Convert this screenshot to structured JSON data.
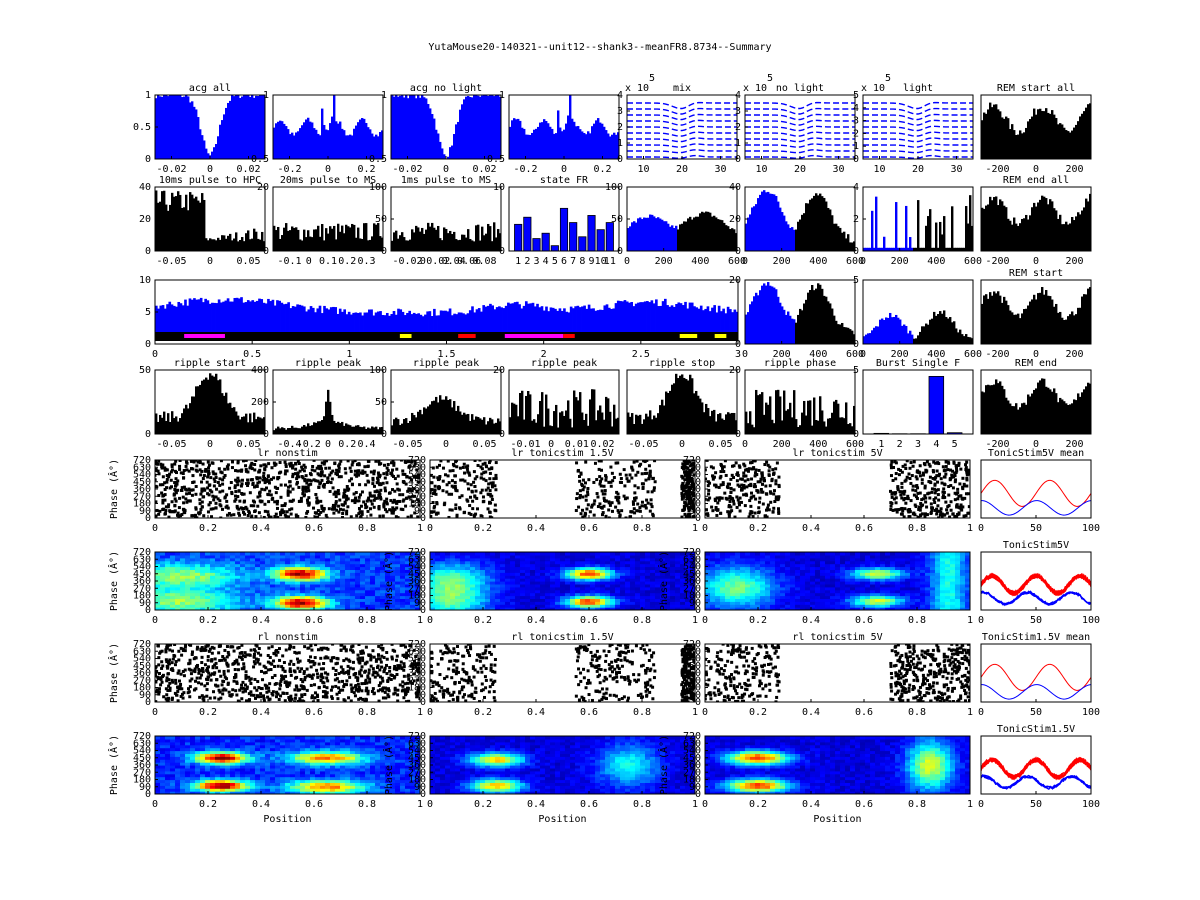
{
  "figure_title": "YutaMouse20-140321--unit12--shank3--meanFR8.8734--Summary",
  "colors": {
    "blue": "#0000ff",
    "black": "#000000",
    "red": "#ff0000",
    "magenta": "#ff00ff",
    "yellow": "#ffff00"
  },
  "chart_data": [
    {
      "id": "acg_all",
      "type": "area",
      "title": "acg all",
      "xticks": [
        "-0.02",
        "0",
        "0.02"
      ],
      "yticks": [
        "0",
        "0.5",
        "1"
      ],
      "ylim": [
        0,
        1
      ],
      "color": "blue",
      "profile": "acg_wide"
    },
    {
      "id": "acg_all_zoom",
      "type": "area",
      "title": "",
      "xticks": [
        "-0.2",
        "0",
        "0.2"
      ],
      "yticks": [
        "0.5",
        "1"
      ],
      "ylim": [
        0,
        1
      ],
      "color": "blue",
      "profile": "acg_narrow"
    },
    {
      "id": "acg_no_light",
      "type": "area",
      "title": "acg no light",
      "xticks": [
        "-0.02",
        "0",
        "0.02"
      ],
      "yticks": [
        "0.5",
        "1"
      ],
      "ylim": [
        0,
        1
      ],
      "color": "blue",
      "profile": "acg_wide"
    },
    {
      "id": "acg_no_light_zoom",
      "type": "area",
      "title": "",
      "xticks": [
        "-0.2",
        "0",
        "0.2"
      ],
      "yticks": [
        "0.5",
        "1"
      ],
      "ylim": [
        0,
        1
      ],
      "color": "blue",
      "profile": "acg_narrow"
    },
    {
      "id": "wave_mix",
      "type": "line",
      "title": "mix",
      "exponent_label": "x 10",
      "exponent": "5",
      "xticks": [
        "10",
        "20",
        "30"
      ],
      "yticks": [
        "0",
        "1",
        "2",
        "3",
        "4"
      ],
      "profile": "waves"
    },
    {
      "id": "wave_no_light",
      "type": "line",
      "title": "no light",
      "exponent_label": "x 10",
      "exponent": "5",
      "xticks": [
        "10",
        "20",
        "30"
      ],
      "yticks": [
        "0",
        "1",
        "2",
        "3",
        "4"
      ],
      "profile": "waves"
    },
    {
      "id": "wave_light",
      "type": "line",
      "title": "light",
      "exponent_label": "x 10",
      "exponent": "5",
      "xticks": [
        "10",
        "20",
        "30"
      ],
      "yticks": [
        "0",
        "1",
        "2",
        "3",
        "4",
        "5"
      ],
      "profile": "waves"
    },
    {
      "id": "rem_start_all",
      "type": "area",
      "title": "REM start all",
      "xticks": [
        "-200",
        "0",
        "200"
      ],
      "yticks": [],
      "color": "black",
      "profile": "rem"
    },
    {
      "id": "pulse10_hpc",
      "type": "bar",
      "title": "10ms pulse to HPC",
      "xticks": [
        "-0.05",
        "0",
        "0.05"
      ],
      "yticks": [
        "0",
        "20",
        "40"
      ],
      "ylim": [
        0,
        40
      ],
      "color": "black",
      "profile": "pulse10"
    },
    {
      "id": "pulse20_ms",
      "type": "bar",
      "title": "20ms pulse to MS",
      "xticks": [
        "-0.1",
        "0",
        "0.1",
        "0.2",
        "0.3"
      ],
      "yticks": [
        "0",
        "20"
      ],
      "ylim": [
        0,
        20
      ],
      "color": "black",
      "profile": "flat"
    },
    {
      "id": "pulse1_ms",
      "type": "bar",
      "title": "1ms pulse to MS",
      "xticks": [
        "-0.02",
        "0",
        "0.02",
        "0.04",
        "0.06",
        "0.08"
      ],
      "yticks": [
        "0",
        "50",
        "100"
      ],
      "ylim": [
        0,
        100
      ],
      "color": "black",
      "profile": "flat"
    },
    {
      "id": "state_fr",
      "type": "bar",
      "title": "state FR",
      "categories": [
        "1",
        "2",
        "3",
        "4",
        "5",
        "6",
        "7",
        "8",
        "9",
        "10",
        "11"
      ],
      "values": [
        7.5,
        9.5,
        3.5,
        5,
        1.5,
        12,
        8,
        4,
        10,
        6,
        8
      ],
      "yticks": [
        "0",
        "10"
      ],
      "ylim": [
        0,
        18
      ],
      "color": "blue"
    },
    {
      "id": "run_fr_1",
      "type": "area",
      "title": "",
      "xticks": [
        "0",
        "200",
        "400",
        "600"
      ],
      "yticks": [
        "0",
        "50",
        "100"
      ],
      "ylim": [
        0,
        100
      ],
      "profile": "run_bimodal"
    },
    {
      "id": "run_fr_2",
      "type": "area",
      "title": "",
      "xticks": [
        "0",
        "200",
        "400",
        "600"
      ],
      "yticks": [
        "0",
        "20",
        "40"
      ],
      "ylim": [
        0,
        40
      ],
      "profile": "run_hump"
    },
    {
      "id": "run_fr_3",
      "type": "bar",
      "title": "",
      "xticks": [
        "0",
        "200",
        "400",
        "600"
      ],
      "yticks": [
        "0",
        "2",
        "4"
      ],
      "ylim": [
        0,
        4
      ],
      "profile": "run_sparse"
    },
    {
      "id": "rem_end_all",
      "type": "area",
      "title": "REM end all",
      "xticks": [
        "-200",
        "0",
        "200"
      ],
      "yticks": [],
      "color": "black",
      "profile": "rem"
    },
    {
      "id": "session_fr",
      "type": "area",
      "title": "",
      "xticks": [
        "0",
        "0.5",
        "1",
        "1.5",
        "2",
        "2.5",
        "3"
      ],
      "yticks": [
        "0",
        "5",
        "10"
      ],
      "ylim": [
        0,
        12
      ],
      "color": "blue",
      "profile": "session"
    },
    {
      "id": "run_fr_4",
      "type": "area",
      "title": "",
      "xticks": [
        "0",
        "200",
        "400",
        "600"
      ],
      "yticks": [
        "0",
        "20"
      ],
      "ylim": [
        0,
        20
      ],
      "profile": "run_hump"
    },
    {
      "id": "run_fr_5",
      "type": "area",
      "title": "",
      "xticks": [
        "0",
        "200",
        "400",
        "600"
      ],
      "yticks": [
        "0",
        "5"
      ],
      "ylim": [
        0,
        5
      ],
      "profile": "run_low"
    },
    {
      "id": "rem_start",
      "type": "area",
      "title": "REM start",
      "xticks": [
        "-200",
        "0",
        "200"
      ],
      "yticks": [],
      "color": "black",
      "profile": "rem"
    },
    {
      "id": "ripple_start",
      "type": "bar",
      "title": "ripple start",
      "xticks": [
        "-0.05",
        "0",
        "0.05"
      ],
      "yticks": [
        "0",
        "50"
      ],
      "ylim": [
        0,
        55
      ],
      "color": "black",
      "profile": "ripple_peak"
    },
    {
      "id": "ripple_peak_1",
      "type": "bar",
      "title": "ripple peak",
      "xticks": [
        "-0.4",
        "-0.2",
        "0",
        "0.2",
        "0.4"
      ],
      "yticks": [
        "0",
        "200",
        "400"
      ],
      "ylim": [
        0,
        400
      ],
      "color": "black",
      "profile": "ripple_sharp"
    },
    {
      "id": "ripple_peak_2",
      "type": "bar",
      "title": "ripple peak",
      "xticks": [
        "-0.05",
        "0",
        "0.05"
      ],
      "yticks": [
        "0",
        "50",
        "100"
      ],
      "ylim": [
        0,
        100
      ],
      "color": "black",
      "profile": "ripple_mid"
    },
    {
      "id": "ripple_peak_3",
      "type": "bar",
      "title": "ripple peak",
      "xticks": [
        "-0.01",
        "0",
        "0.01",
        "0.02"
      ],
      "yticks": [
        "0",
        "20"
      ],
      "ylim": [
        0,
        40
      ],
      "color": "black",
      "profile": "noise"
    },
    {
      "id": "ripple_stop",
      "type": "bar",
      "title": "ripple stop",
      "xticks": [
        "-0.05",
        "0",
        "0.05"
      ],
      "yticks": [],
      "ylim": [
        0,
        60
      ],
      "color": "black",
      "profile": "ripple_peak"
    },
    {
      "id": "ripple_phase",
      "type": "bar",
      "title": "ripple phase",
      "xticks": [
        "0",
        "200",
        "400",
        "600"
      ],
      "yticks": [
        "0",
        "20"
      ],
      "ylim": [
        0,
        50
      ],
      "color": "black",
      "profile": "noise"
    },
    {
      "id": "burst_single",
      "type": "bar",
      "title": "Burst Single F",
      "categories": [
        "1",
        "2",
        "3",
        "4",
        "5"
      ],
      "values": [
        0.05,
        0.02,
        0.02,
        4.5,
        0.1
      ],
      "yticks": [
        "0",
        "5"
      ],
      "ylim": [
        0,
        5
      ],
      "color": "blue"
    },
    {
      "id": "rem_end",
      "type": "area",
      "title": "REM end",
      "xticks": [
        "-200",
        "0",
        "200"
      ],
      "yticks": [],
      "color": "black",
      "profile": "rem"
    },
    {
      "id": "lr_nonstim",
      "type": "scatter",
      "title": "lr nonstim",
      "ylabel": "Phase (Â°)",
      "xticks": [
        "0",
        "0.2",
        "0.4",
        "0.6",
        "0.8",
        "1"
      ],
      "yticks": [
        "0",
        "90",
        "180",
        "270",
        "360",
        "450",
        "540",
        "630",
        "720"
      ],
      "profile": "scatter_dense"
    },
    {
      "id": "lr_tonicstim_1_5v",
      "type": "scatter",
      "title": "lr tonicstim 1.5V",
      "xticks": [
        "0",
        "0.2",
        "0.4",
        "0.6",
        "0.8",
        "1"
      ],
      "yticks": [
        "0",
        "90",
        "180",
        "270",
        "360",
        "450",
        "540",
        "630",
        "720"
      ],
      "profile": "scatter_mid"
    },
    {
      "id": "lr_tonicstim_5v",
      "type": "scatter",
      "title": "lr tonicstim 5V",
      "xticks": [
        "0",
        "0.2",
        "0.4",
        "0.6",
        "0.8",
        "1"
      ],
      "yticks": [
        "0",
        "90",
        "180",
        "270",
        "360",
        "450",
        "540",
        "630",
        "720"
      ],
      "profile": "scatter_ends"
    },
    {
      "id": "tonicstim5v_mean",
      "type": "line",
      "title": "TonicStim5V mean",
      "xticks": [
        "0",
        "50",
        "100"
      ],
      "yticks": [],
      "profile": "mean"
    },
    {
      "id": "heat_lr_nonstim",
      "type": "heatmap",
      "title": "",
      "ylabel": "Phase (Â°)",
      "xticks": [
        "0",
        "0.2",
        "0.4",
        "0.6",
        "0.8",
        "1"
      ],
      "yticks": [
        "0",
        "90",
        "180",
        "270",
        "360",
        "450",
        "540",
        "630",
        "720"
      ],
      "profile": "heat_a"
    },
    {
      "id": "heat_lr_tonic_1_5v",
      "type": "heatmap",
      "title": "",
      "ylabel": "Phase (Â°)",
      "xticks": [
        "0",
        "0.2",
        "0.4",
        "0.6",
        "0.8",
        "1"
      ],
      "yticks": [
        "0",
        "90",
        "180",
        "270",
        "360",
        "450",
        "540",
        "630",
        "720"
      ],
      "profile": "heat_b"
    },
    {
      "id": "heat_lr_tonic_5v",
      "type": "heatmap",
      "title": "",
      "ylabel": "Phase (Â°)",
      "xticks": [
        "0",
        "0.2",
        "0.4",
        "0.6",
        "0.8",
        "1"
      ],
      "yticks": [
        "0",
        "90",
        "180",
        "270",
        "360",
        "450",
        "540",
        "630",
        "720"
      ],
      "profile": "heat_c"
    },
    {
      "id": "tonicstim5v",
      "type": "line",
      "title": "TonicStim5V",
      "xticks": [
        "0",
        "50",
        "100"
      ],
      "yticks": [],
      "profile": "traces"
    },
    {
      "id": "rl_nonstim",
      "type": "scatter",
      "title": "rl nonstim",
      "ylabel": "Phase (Â°)",
      "xticks": [
        "0",
        "0.2",
        "0.4",
        "0.6",
        "0.8",
        "1"
      ],
      "yticks": [
        "0",
        "90",
        "180",
        "270",
        "360",
        "450",
        "540",
        "630",
        "720"
      ],
      "profile": "scatter_dense"
    },
    {
      "id": "rl_tonicstim_1_5v",
      "type": "scatter",
      "title": "rl tonicstim 1.5V",
      "xticks": [
        "0",
        "0.2",
        "0.4",
        "0.6",
        "0.8",
        "1"
      ],
      "yticks": [
        "0",
        "90",
        "180",
        "270",
        "360",
        "450",
        "540",
        "630",
        "720"
      ],
      "profile": "scatter_mid"
    },
    {
      "id": "rl_tonicstim_5v",
      "type": "scatter",
      "title": "rl tonicstim 5V",
      "xticks": [
        "0",
        "0.2",
        "0.4",
        "0.6",
        "0.8",
        "1"
      ],
      "yticks": [
        "0",
        "90",
        "180",
        "270",
        "360",
        "450",
        "540",
        "630",
        "720"
      ],
      "profile": "scatter_ends"
    },
    {
      "id": "tonicstim1_5v_mean",
      "type": "line",
      "title": "TonicStim1.5V mean",
      "xticks": [
        "0",
        "50",
        "100"
      ],
      "yticks": [],
      "profile": "mean"
    },
    {
      "id": "heat_rl_nonstim",
      "type": "heatmap",
      "title": "",
      "ylabel": "Phase (Â°)",
      "xlabel": "Position",
      "xticks": [
        "0",
        "0.2",
        "0.4",
        "0.6",
        "0.8",
        "1"
      ],
      "yticks": [
        "0",
        "90",
        "180",
        "270",
        "360",
        "450",
        "540",
        "630",
        "720"
      ],
      "profile": "heat_d"
    },
    {
      "id": "heat_rl_tonic_1_5v",
      "type": "heatmap",
      "title": "",
      "ylabel": "Phase (Â°)",
      "xlabel": "Position",
      "xticks": [
        "0",
        "0.2",
        "0.4",
        "0.6",
        "0.8",
        "1"
      ],
      "yticks": [
        "0",
        "90",
        "180",
        "270",
        "360",
        "450",
        "540",
        "630",
        "720"
      ],
      "profile": "heat_e"
    },
    {
      "id": "heat_rl_tonic_5v",
      "type": "heatmap",
      "title": "",
      "ylabel": "Phase (Â°)",
      "xlabel": "Position",
      "xticks": [
        "0",
        "0.2",
        "0.4",
        "0.6",
        "0.8",
        "1"
      ],
      "yticks": [
        "0",
        "90",
        "180",
        "270",
        "360",
        "450",
        "540",
        "630",
        "720"
      ],
      "profile": "heat_f"
    },
    {
      "id": "tonicstim1_5v",
      "type": "line",
      "title": "TonicStim1.5V",
      "xticks": [
        "0",
        "50",
        "100"
      ],
      "yticks": [],
      "profile": "traces"
    }
  ]
}
